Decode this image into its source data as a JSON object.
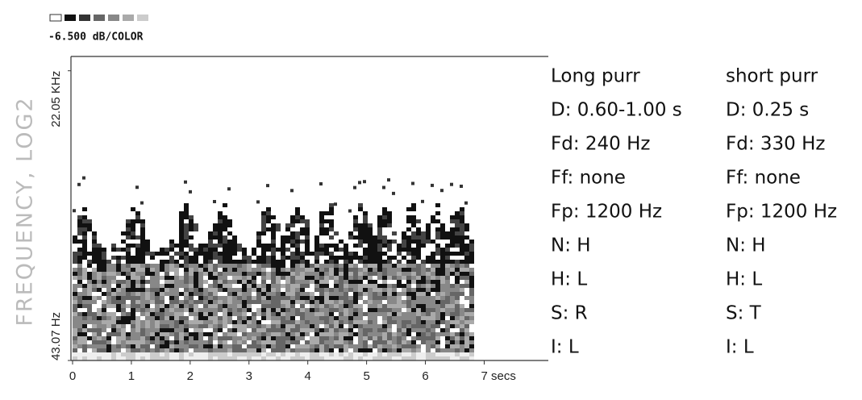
{
  "chart_data": {
    "type": "spectrogram",
    "y_label": "FREQUENCY, LOG2",
    "colorbar_label": "-6.500 dB/COLOR",
    "log_scale_y": true,
    "xlim": [
      0,
      7.35
    ],
    "xticks": [
      0,
      1,
      2,
      3,
      4,
      5,
      6,
      {
        "value": 7,
        "label": "7 secs"
      }
    ],
    "ylim": [
      43.07,
      30000
    ],
    "yticks": [
      {
        "value": 43.07,
        "label": "43.07 Hz"
      },
      {
        "value": 22050,
        "label": "22.05 KHz"
      }
    ],
    "annotations": [
      {
        "title": "Long purr",
        "rows": [
          "D: 0.60-1.00 s",
          "Fd: 240 Hz",
          "Ff: none",
          "Fp: 1200 Hz",
          "N: H",
          "H: L",
          "S: R",
          "I: L"
        ]
      },
      {
        "title": "short purr",
        "rows": [
          "D: 0.25 s",
          "Fd: 330 Hz",
          "Ff: none",
          "Fp: 1200 Hz",
          "N: H",
          "H: L",
          "S: T",
          "I: L"
        ]
      }
    ]
  }
}
